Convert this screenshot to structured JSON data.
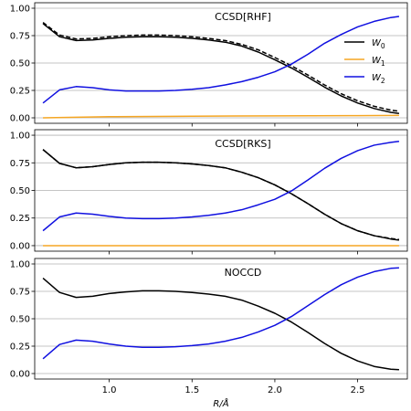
{
  "chart_data": [
    {
      "type": "line",
      "title": "CCSD[RHF]",
      "xlim": [
        0.55,
        2.8
      ],
      "ylim": [
        -0.05,
        1.05
      ],
      "yticks": [
        0.0,
        0.25,
        0.5,
        0.75,
        1.0
      ],
      "ytick_labels": [
        "0.00",
        "0.25",
        "0.50",
        "0.75",
        "1.00"
      ],
      "grid": "horizontal",
      "legend": {
        "placement": "right",
        "entries": [
          {
            "label": "W",
            "sub": "0",
            "color": "#000000"
          },
          {
            "label": "W",
            "sub": "1",
            "color": "#f5a623"
          },
          {
            "label": "W",
            "sub": "2",
            "color": "#1010e0"
          }
        ]
      },
      "series": [
        {
          "name": "W0",
          "color": "#000000",
          "dash": "solid",
          "x": [
            0.6,
            0.7,
            0.8,
            0.9,
            1.0,
            1.1,
            1.2,
            1.3,
            1.4,
            1.5,
            1.6,
            1.7,
            1.8,
            1.9,
            2.0,
            2.1,
            2.2,
            2.3,
            2.4,
            2.5,
            2.6,
            2.7,
            2.75
          ],
          "y": [
            0.86,
            0.74,
            0.705,
            0.71,
            0.725,
            0.735,
            0.74,
            0.74,
            0.735,
            0.725,
            0.71,
            0.69,
            0.655,
            0.6,
            0.53,
            0.455,
            0.37,
            0.28,
            0.2,
            0.135,
            0.085,
            0.05,
            0.04
          ]
        },
        {
          "name": "",
          "color": "#000000",
          "dash": "dashed",
          "x": [
            0.6,
            0.7,
            0.8,
            0.9,
            1.0,
            1.1,
            1.2,
            1.3,
            1.4,
            1.5,
            1.6,
            1.7,
            1.8,
            1.9,
            2.0,
            2.1,
            2.2,
            2.3,
            2.4,
            2.5,
            2.6,
            2.7,
            2.75
          ],
          "y": [
            0.87,
            0.755,
            0.72,
            0.725,
            0.74,
            0.75,
            0.755,
            0.755,
            0.75,
            0.74,
            0.725,
            0.705,
            0.67,
            0.62,
            0.55,
            0.475,
            0.39,
            0.3,
            0.22,
            0.155,
            0.105,
            0.07,
            0.06
          ]
        },
        {
          "name": "W1",
          "color": "#f5a623",
          "dash": "solid",
          "x": [
            0.6,
            1.0,
            1.5,
            2.0,
            2.5,
            2.75
          ],
          "y": [
            0.0,
            0.01,
            0.015,
            0.018,
            0.02,
            0.022
          ]
        },
        {
          "name": "W2",
          "color": "#1010e0",
          "dash": "solid",
          "x": [
            0.6,
            0.7,
            0.8,
            0.9,
            1.0,
            1.1,
            1.2,
            1.3,
            1.4,
            1.5,
            1.6,
            1.7,
            1.8,
            1.9,
            2.0,
            2.1,
            2.2,
            2.3,
            2.4,
            2.5,
            2.6,
            2.7,
            2.75
          ],
          "y": [
            0.135,
            0.255,
            0.285,
            0.275,
            0.255,
            0.245,
            0.245,
            0.245,
            0.25,
            0.26,
            0.275,
            0.3,
            0.33,
            0.37,
            0.42,
            0.49,
            0.58,
            0.68,
            0.76,
            0.83,
            0.88,
            0.915,
            0.925
          ]
        }
      ]
    },
    {
      "type": "line",
      "title": "CCSD[RKS]",
      "xlim": [
        0.55,
        2.8
      ],
      "ylim": [
        -0.05,
        1.05
      ],
      "yticks": [
        0.0,
        0.25,
        0.5,
        0.75,
        1.0
      ],
      "ytick_labels": [
        "0.00",
        "0.25",
        "0.50",
        "0.75",
        "1.00"
      ],
      "grid": "horizontal",
      "series": [
        {
          "name": "W0",
          "color": "#000000",
          "dash": "solid",
          "x": [
            0.6,
            0.7,
            0.8,
            0.9,
            1.0,
            1.1,
            1.2,
            1.3,
            1.4,
            1.5,
            1.6,
            1.7,
            1.8,
            1.9,
            2.0,
            2.1,
            2.2,
            2.3,
            2.4,
            2.5,
            2.6,
            2.7,
            2.75
          ],
          "y": [
            0.87,
            0.745,
            0.705,
            0.715,
            0.735,
            0.75,
            0.755,
            0.755,
            0.75,
            0.74,
            0.725,
            0.705,
            0.665,
            0.615,
            0.55,
            0.47,
            0.38,
            0.285,
            0.2,
            0.135,
            0.09,
            0.06,
            0.05
          ]
        },
        {
          "name": "",
          "color": "#000000",
          "dash": "dashed",
          "x": [
            0.6,
            0.7,
            0.8,
            0.9,
            1.0,
            1.1,
            1.2,
            1.3,
            1.4,
            1.5,
            1.6,
            1.7,
            1.8,
            1.9,
            2.0,
            2.1,
            2.2,
            2.3,
            2.4,
            2.5,
            2.6,
            2.7,
            2.75
          ],
          "y": [
            0.87,
            0.745,
            0.705,
            0.715,
            0.735,
            0.75,
            0.755,
            0.755,
            0.75,
            0.74,
            0.725,
            0.705,
            0.665,
            0.615,
            0.55,
            0.47,
            0.38,
            0.285,
            0.2,
            0.135,
            0.09,
            0.065,
            0.055
          ]
        },
        {
          "name": "W1",
          "color": "#f5a623",
          "dash": "solid",
          "x": [
            0.6,
            2.75
          ],
          "y": [
            0.0,
            0.0
          ]
        },
        {
          "name": "W2",
          "color": "#1010e0",
          "dash": "solid",
          "x": [
            0.6,
            0.7,
            0.8,
            0.9,
            1.0,
            1.1,
            1.2,
            1.3,
            1.4,
            1.5,
            1.6,
            1.7,
            1.8,
            1.9,
            2.0,
            2.1,
            2.2,
            2.3,
            2.4,
            2.5,
            2.6,
            2.7,
            2.75
          ],
          "y": [
            0.135,
            0.26,
            0.295,
            0.285,
            0.265,
            0.25,
            0.245,
            0.245,
            0.25,
            0.26,
            0.275,
            0.295,
            0.325,
            0.37,
            0.42,
            0.495,
            0.595,
            0.7,
            0.79,
            0.86,
            0.91,
            0.935,
            0.945
          ]
        }
      ]
    },
    {
      "type": "line",
      "title": "NOCCD",
      "xlim": [
        0.55,
        2.8
      ],
      "ylim": [
        -0.05,
        1.05
      ],
      "yticks": [
        0.0,
        0.25,
        0.5,
        0.75,
        1.0
      ],
      "ytick_labels": [
        "0.00",
        "0.25",
        "0.50",
        "0.75",
        "1.00"
      ],
      "xticks": [
        1.0,
        1.5,
        2.0,
        2.5
      ],
      "xtick_labels": [
        "1.0",
        "1.5",
        "2.0",
        "2.5"
      ],
      "xlabel": "R/Å",
      "grid": "horizontal",
      "series": [
        {
          "name": "W0",
          "color": "#000000",
          "dash": "solid",
          "x": [
            0.6,
            0.7,
            0.8,
            0.9,
            1.0,
            1.1,
            1.2,
            1.3,
            1.4,
            1.5,
            1.6,
            1.7,
            1.8,
            1.9,
            2.0,
            2.1,
            2.2,
            2.3,
            2.4,
            2.5,
            2.6,
            2.7,
            2.75
          ],
          "y": [
            0.87,
            0.74,
            0.695,
            0.705,
            0.73,
            0.745,
            0.755,
            0.755,
            0.75,
            0.74,
            0.725,
            0.705,
            0.67,
            0.615,
            0.55,
            0.47,
            0.375,
            0.275,
            0.185,
            0.115,
            0.065,
            0.04,
            0.035
          ]
        },
        {
          "name": "W2",
          "color": "#1010e0",
          "dash": "solid",
          "x": [
            0.6,
            0.7,
            0.8,
            0.9,
            1.0,
            1.1,
            1.2,
            1.3,
            1.4,
            1.5,
            1.6,
            1.7,
            1.8,
            1.9,
            2.0,
            2.1,
            2.2,
            2.3,
            2.4,
            2.5,
            2.6,
            2.7,
            2.75
          ],
          "y": [
            0.135,
            0.265,
            0.305,
            0.295,
            0.27,
            0.25,
            0.24,
            0.24,
            0.245,
            0.255,
            0.27,
            0.295,
            0.33,
            0.38,
            0.44,
            0.52,
            0.62,
            0.72,
            0.81,
            0.88,
            0.93,
            0.96,
            0.965
          ]
        }
      ]
    }
  ]
}
